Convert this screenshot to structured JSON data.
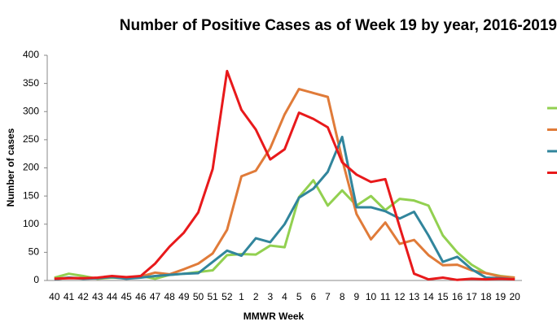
{
  "chart_data": {
    "type": "line",
    "title": "Number of Positive Cases as of Week 19  by year, 2016-2019",
    "x_label": "MMWR Week",
    "y_label": "Number of cases",
    "categories": [
      "40",
      "41",
      "42",
      "43",
      "44",
      "45",
      "46",
      "47",
      "48",
      "49",
      "50",
      "51",
      "52",
      "1",
      "2",
      "3",
      "4",
      "5",
      "6",
      "7",
      "8",
      "9",
      "10",
      "11",
      "12",
      "13",
      "14",
      "15",
      "16",
      "17",
      "18",
      "19",
      "20"
    ],
    "ylim": [
      0,
      400
    ],
    "yticks": [
      0,
      50,
      100,
      150,
      200,
      250,
      300,
      350,
      400
    ],
    "grid": false,
    "legend": "right",
    "series": [
      {
        "color": "#92d050",
        "values": [
          5,
          12,
          8,
          3,
          5,
          4,
          8,
          3,
          10,
          12,
          15,
          18,
          45,
          47,
          46,
          62,
          59,
          148,
          178,
          133,
          160,
          133,
          150,
          125,
          145,
          142,
          133,
          80,
          50,
          28,
          13,
          8,
          5
        ]
      },
      {
        "color": "#e07b39",
        "values": [
          3,
          5,
          4,
          4,
          6,
          5,
          7,
          14,
          11,
          20,
          30,
          48,
          90,
          185,
          195,
          235,
          295,
          340,
          333,
          326,
          215,
          118,
          73,
          103,
          65,
          72,
          45,
          27,
          28,
          18,
          13,
          7,
          5
        ]
      },
      {
        "color": "#31859c",
        "values": [
          2,
          5,
          3,
          4,
          6,
          3,
          5,
          8,
          10,
          12,
          13,
          33,
          53,
          44,
          75,
          68,
          100,
          147,
          163,
          193,
          255,
          130,
          130,
          123,
          110,
          122,
          80,
          33,
          42,
          20,
          5,
          4,
          2
        ]
      },
      {
        "color": "#e8191b",
        "values": [
          3,
          4,
          4,
          5,
          8,
          6,
          8,
          30,
          60,
          85,
          121,
          198,
          372,
          303,
          268,
          215,
          233,
          298,
          287,
          272,
          210,
          188,
          175,
          180,
          95,
          12,
          2,
          5,
          1,
          3,
          2,
          3,
          2
        ]
      }
    ]
  }
}
